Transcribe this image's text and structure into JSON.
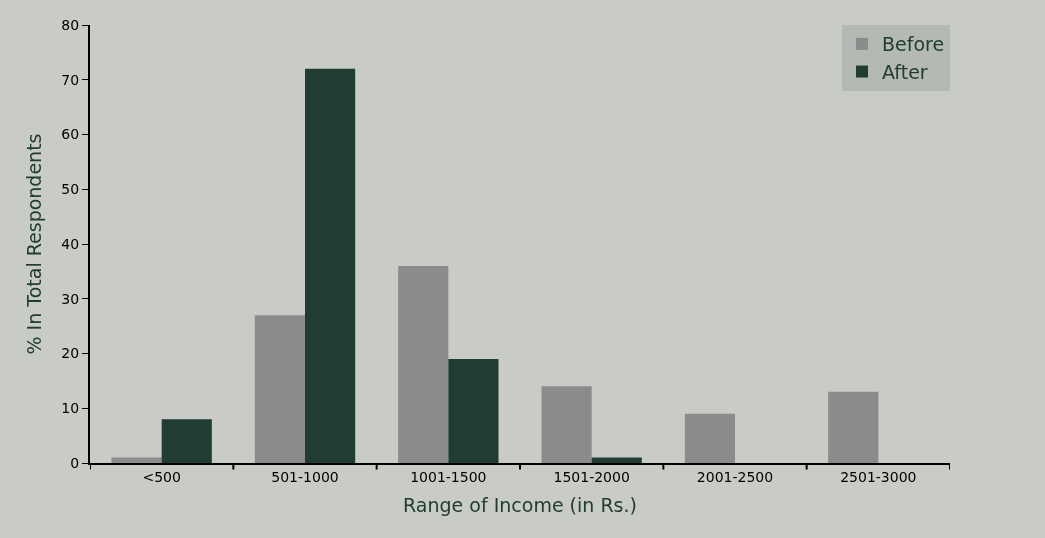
{
  "chart_data": {
    "type": "bar",
    "xlabel": "Range of Income (in Rs.)",
    "ylabel": "% In Total Respondents",
    "categories": [
      "<500",
      "501-1000",
      "1001-1500",
      "1501-2000",
      "2001-2500",
      "2501-3000"
    ],
    "series": [
      {
        "name": "Before",
        "color": "#8a8b8b",
        "values": [
          1,
          27,
          36,
          14,
          9,
          13
        ]
      },
      {
        "name": "After",
        "color": "#213d33",
        "values": [
          8,
          72,
          19,
          1,
          0,
          0
        ]
      }
    ],
    "ylim": [
      0,
      80
    ],
    "yticks": [
      0,
      10,
      20,
      30,
      40,
      50,
      60,
      70,
      80
    ],
    "grid": false,
    "legend": "top right"
  }
}
